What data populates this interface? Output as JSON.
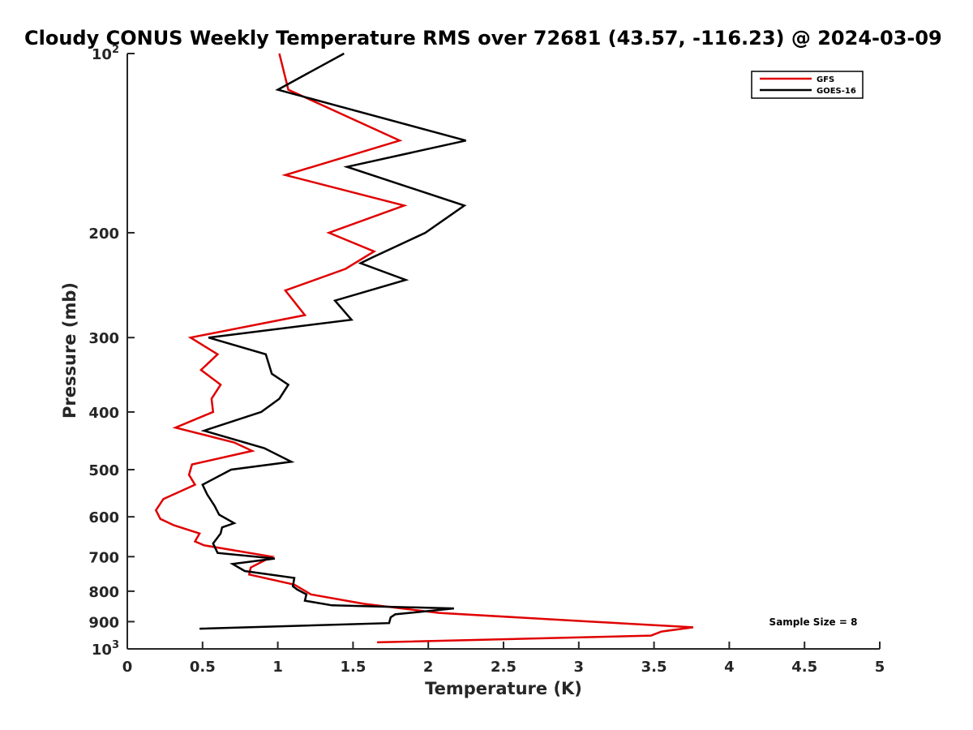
{
  "chart_data": {
    "type": "line",
    "title": "Cloudy CONUS Weekly Temperature RMS over 72681 (43.57, -116.23) @ 2024-03-09",
    "xlabel": "Temperature (K)",
    "ylabel": "Pressure (mb)",
    "xlim": [
      0,
      5
    ],
    "ylim": [
      1000,
      100
    ],
    "yscale": "log",
    "y_reversed": true,
    "grid": false,
    "legend_position": "top-right",
    "x_ticks": [
      "0",
      "0.5",
      "1",
      "1.5",
      "2",
      "2.5",
      "3",
      "3.5",
      "4",
      "4.5",
      "5"
    ],
    "y_ticks": [
      {
        "value": 100,
        "base": "10",
        "exp": "2"
      },
      {
        "value": 200,
        "label": "200"
      },
      {
        "value": 300,
        "label": "300"
      },
      {
        "value": 400,
        "label": "400"
      },
      {
        "value": 500,
        "label": "500"
      },
      {
        "value": 600,
        "label": "600"
      },
      {
        "value": 700,
        "label": "700"
      },
      {
        "value": 800,
        "label": "800"
      },
      {
        "value": 900,
        "label": "900"
      },
      {
        "value": 1000,
        "base": "10",
        "exp": "3"
      }
    ],
    "annotation": "Sample Size = 8",
    "series": [
      {
        "name": "GFS",
        "color": "#e00000",
        "points": [
          [
            1.01,
            100
          ],
          [
            1.07,
            115
          ],
          [
            1.81,
            140
          ],
          [
            1.05,
            160
          ],
          [
            1.84,
            180
          ],
          [
            1.34,
            200
          ],
          [
            1.64,
            215
          ],
          [
            1.45,
            230
          ],
          [
            1.05,
            250
          ],
          [
            1.18,
            275
          ],
          [
            0.42,
            300
          ],
          [
            0.6,
            320
          ],
          [
            0.49,
            340
          ],
          [
            0.62,
            360
          ],
          [
            0.56,
            380
          ],
          [
            0.57,
            400
          ],
          [
            0.32,
            425
          ],
          [
            0.71,
            450
          ],
          [
            0.83,
            465
          ],
          [
            0.43,
            490
          ],
          [
            0.41,
            510
          ],
          [
            0.45,
            530
          ],
          [
            0.24,
            560
          ],
          [
            0.19,
            585
          ],
          [
            0.22,
            605
          ],
          [
            0.31,
            620
          ],
          [
            0.48,
            640
          ],
          [
            0.45,
            660
          ],
          [
            0.51,
            670
          ],
          [
            0.96,
            700
          ],
          [
            0.82,
            730
          ],
          [
            0.81,
            750
          ],
          [
            1.11,
            780
          ],
          [
            1.22,
            810
          ],
          [
            1.57,
            840
          ],
          [
            2.07,
            870
          ],
          [
            3.08,
            900
          ],
          [
            3.76,
            920
          ],
          [
            3.55,
            935
          ],
          [
            3.48,
            950
          ],
          [
            1.66,
            975
          ]
        ]
      },
      {
        "name": "GOES-16",
        "color": "#000000",
        "points": [
          [
            1.44,
            100
          ],
          [
            1.0,
            115
          ],
          [
            2.25,
            140
          ],
          [
            1.46,
            155
          ],
          [
            2.24,
            180
          ],
          [
            1.98,
            200
          ],
          [
            1.63,
            220
          ],
          [
            1.55,
            225
          ],
          [
            1.85,
            240
          ],
          [
            1.38,
            260
          ],
          [
            1.49,
            280
          ],
          [
            0.54,
            300
          ],
          [
            0.92,
            320
          ],
          [
            0.96,
            345
          ],
          [
            1.07,
            360
          ],
          [
            1.01,
            380
          ],
          [
            0.89,
            400
          ],
          [
            0.51,
            430
          ],
          [
            0.91,
            460
          ],
          [
            1.09,
            485
          ],
          [
            0.69,
            500
          ],
          [
            0.5,
            530
          ],
          [
            0.53,
            550
          ],
          [
            0.58,
            575
          ],
          [
            0.61,
            595
          ],
          [
            0.71,
            615
          ],
          [
            0.63,
            625
          ],
          [
            0.62,
            640
          ],
          [
            0.57,
            665
          ],
          [
            0.6,
            690
          ],
          [
            0.98,
            705
          ],
          [
            0.7,
            720
          ],
          [
            0.78,
            740
          ],
          [
            1.11,
            760
          ],
          [
            1.1,
            785
          ],
          [
            1.13,
            795
          ],
          [
            1.19,
            810
          ],
          [
            1.18,
            830
          ],
          [
            1.36,
            845
          ],
          [
            2.17,
            855
          ],
          [
            1.78,
            875
          ],
          [
            1.75,
            885
          ],
          [
            1.74,
            905
          ],
          [
            0.48,
            925
          ]
        ]
      }
    ]
  }
}
